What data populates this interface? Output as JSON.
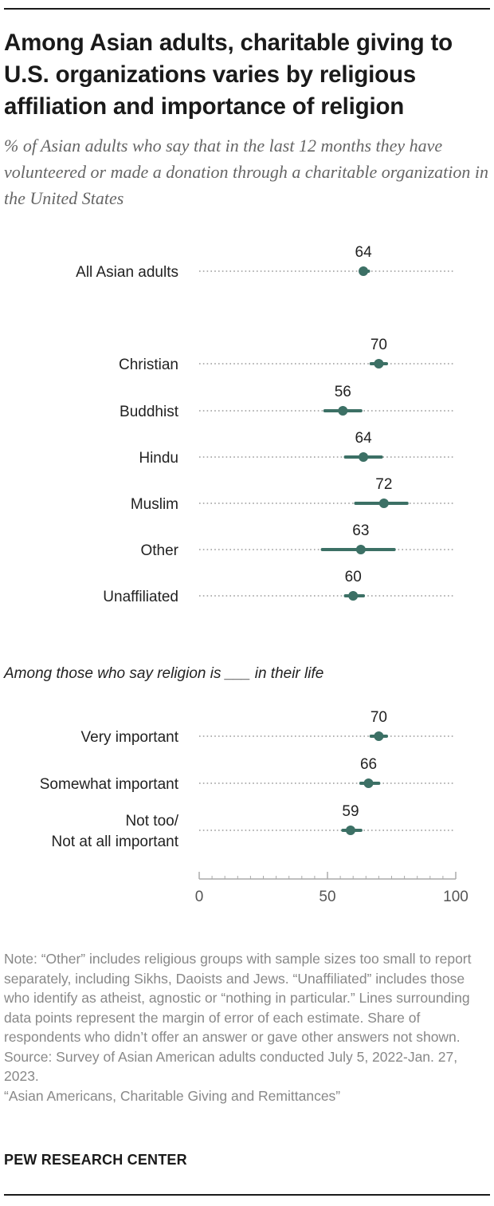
{
  "title": "Among Asian adults, charitable giving to U.S. organizations varies by religious affiliation and importance of religion",
  "subtitle": "% of Asian adults who say that in the last 12 months they have volunteered or made a donation through a charitable organization in the United States",
  "colors": {
    "marker": "#3c7065",
    "dots": "#9a9a9a",
    "axis": "#aaaaaa",
    "text": "#222222",
    "muted": "#888888"
  },
  "chart_data": {
    "type": "scatter",
    "title": "Among Asian adults, charitable giving to U.S. organizations varies by religious affiliation and importance of religion",
    "xlim": [
      0,
      100
    ],
    "xticks": [
      "0",
      "50",
      "100"
    ],
    "section_label": "Among those who say religion is ___ in their life",
    "groups": [
      {
        "rows": [
          {
            "label": "All Asian adults",
            "value": 64,
            "moe": [
              63,
              66
            ]
          }
        ]
      },
      {
        "rows": [
          {
            "label": "Christian",
            "value": 70,
            "moe": [
              67,
              73
            ]
          },
          {
            "label": "Buddhist",
            "value": 56,
            "moe": [
              49,
              63
            ]
          },
          {
            "label": "Hindu",
            "value": 64,
            "moe": [
              57,
              71
            ]
          },
          {
            "label": "Muslim",
            "value": 72,
            "moe": [
              61,
              81
            ]
          },
          {
            "label": "Other",
            "value": 63,
            "moe": [
              48,
              76
            ]
          },
          {
            "label": "Unaffiliated",
            "value": 60,
            "moe": [
              57,
              64
            ]
          }
        ]
      },
      {
        "rows": [
          {
            "label": "Very important",
            "value": 70,
            "moe": [
              67,
              73
            ]
          },
          {
            "label": "Somewhat important",
            "value": 66,
            "moe": [
              63,
              70
            ]
          },
          {
            "label": [
              "Not too/",
              "Not at all important"
            ],
            "value": 59,
            "moe": [
              56,
              63
            ]
          }
        ]
      }
    ]
  },
  "footer": {
    "note": "Note: “Other” includes religious groups with sample sizes too small to report separately, including Sikhs, Daoists and Jews. “Unaffiliated” includes those who identify as atheist, agnostic or “nothing in particular.” Lines surrounding data points represent the margin of error of each estimate. Share of respondents who didn’t offer an answer or gave other answers not shown.",
    "source": "Source: Survey of Asian American adults conducted July 5, 2022-Jan. 27, 2023.",
    "report": "“Asian Americans, Charitable Giving and Remittances”",
    "brand": "PEW RESEARCH CENTER"
  }
}
